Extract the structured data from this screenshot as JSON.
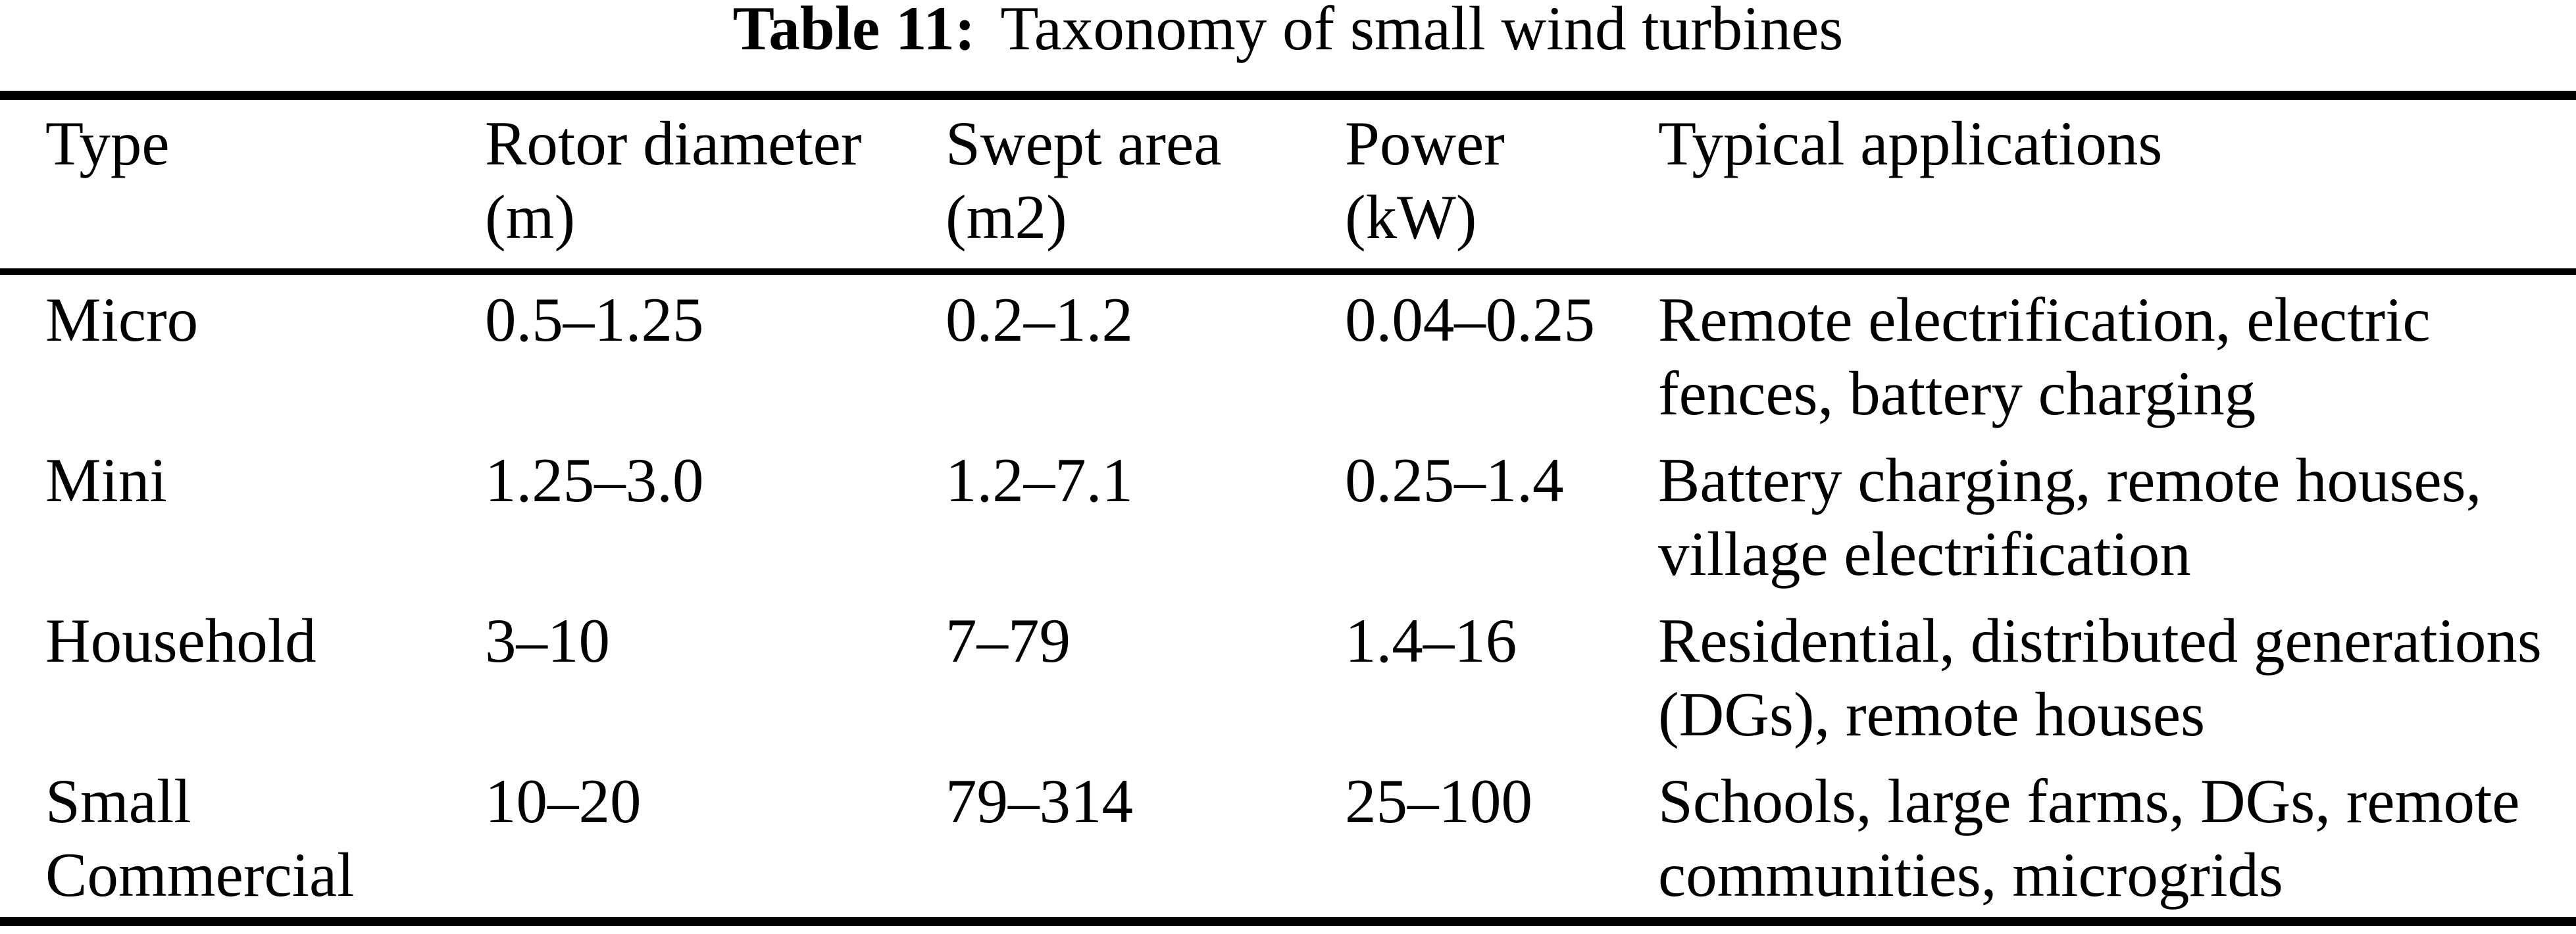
{
  "caption": {
    "prefix": "Table 11:",
    "title": "Taxonomy of small wind turbines"
  },
  "colors": {
    "background": "#ffffff",
    "text": "#000000",
    "rule": "#000000"
  },
  "table": {
    "columns": [
      {
        "label": "Type",
        "unit": ""
      },
      {
        "label": "Rotor diameter",
        "unit": "(m)"
      },
      {
        "label": "Swept area",
        "unit": "(m2)"
      },
      {
        "label": "Power",
        "unit": "(kW)"
      },
      {
        "label": "Typical applications",
        "unit": ""
      }
    ],
    "rows": [
      {
        "cells": [
          [
            "Micro"
          ],
          [
            "0.5–1.25"
          ],
          [
            "0.2–1.2"
          ],
          [
            "0.04–0.25"
          ],
          [
            "Remote electrification, electric",
            "fences, battery charging"
          ]
        ]
      },
      {
        "cells": [
          [
            "Mini"
          ],
          [
            "1.25–3.0"
          ],
          [
            "1.2–7.1"
          ],
          [
            "0.25–1.4"
          ],
          [
            "Battery charging, remote houses,",
            "village electrification"
          ]
        ]
      },
      {
        "cells": [
          [
            "Household"
          ],
          [
            "3–10"
          ],
          [
            "7–79"
          ],
          [
            "1.4–16"
          ],
          [
            "Residential, distributed generations",
            "(DGs), remote houses"
          ]
        ]
      },
      {
        "cells": [
          [
            "Small",
            "Commercial"
          ],
          [
            "10–20"
          ],
          [
            "79–314"
          ],
          [
            "25–100"
          ],
          [
            "Schools, large farms, DGs, remote",
            "communities, microgrids"
          ]
        ]
      }
    ]
  }
}
